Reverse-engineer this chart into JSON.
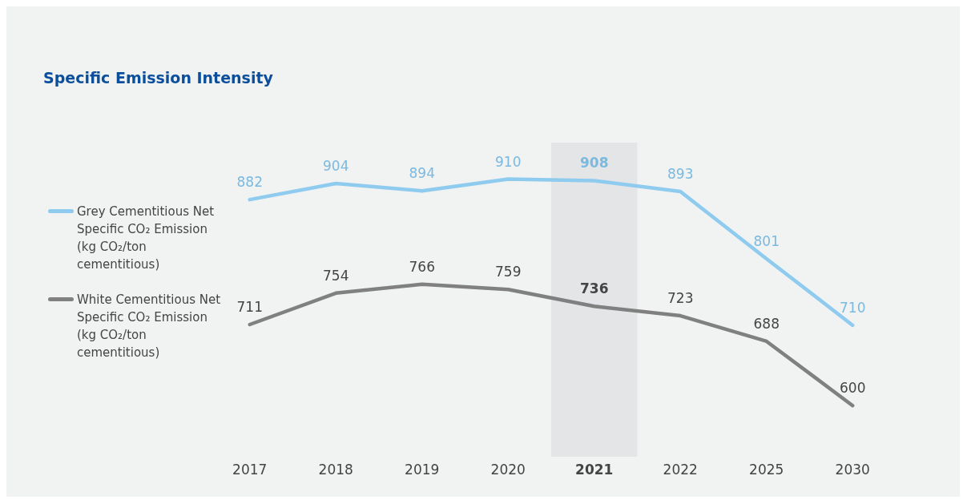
{
  "chart_data": {
    "type": "line",
    "title": "Specific Emission Intensity",
    "categories": [
      "2017",
      "2018",
      "2019",
      "2020",
      "2021",
      "2022",
      "2025",
      "2030"
    ],
    "series": [
      {
        "name": "Grey Cementitious Net Specific CO₂ Emission (kg CO₂/ton cementitious)",
        "color": "#8ecbef",
        "values": [
          882,
          904,
          894,
          910,
          908,
          893,
          801,
          710
        ]
      },
      {
        "name": "White Cementitious Net Specific CO₂ Emission (kg CO₂/ton cementitious)",
        "color": "#808080",
        "values": [
          711,
          754,
          766,
          759,
          736,
          723,
          688,
          600
        ]
      }
    ],
    "bands": [
      {
        "axis": "x",
        "from": "2021",
        "to": "2021",
        "color": "#e4e5e7"
      }
    ],
    "data_labels": true,
    "legend": "left",
    "marker": "none"
  }
}
